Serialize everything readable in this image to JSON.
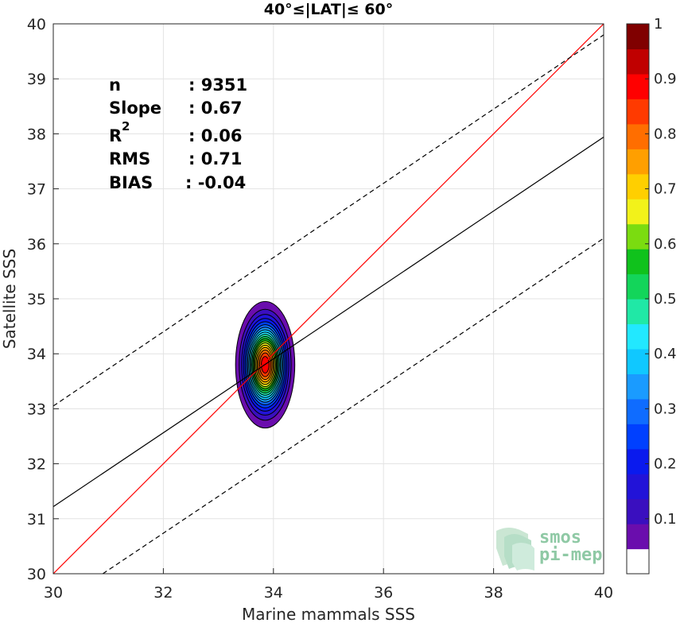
{
  "chart_data": {
    "type": "heatmap",
    "title": "40°≤|LAT|≤ 60°",
    "xlabel": "Marine mammals SSS",
    "ylabel": "Satellite SSS",
    "xlim": [
      30,
      40
    ],
    "ylim": [
      30,
      40
    ],
    "xticks": [
      "30",
      "32",
      "34",
      "36",
      "38",
      "40"
    ],
    "yticks": [
      "30",
      "31",
      "32",
      "33",
      "34",
      "35",
      "36",
      "37",
      "38",
      "39",
      "40"
    ],
    "grid": true,
    "density_center": [
      33.85,
      33.8
    ],
    "density_sigma": [
      0.22,
      0.47
    ],
    "contour_levels": [
      0.05,
      0.1,
      0.15,
      0.2,
      0.25,
      0.3,
      0.35,
      0.4,
      0.45,
      0.5,
      0.55,
      0.6,
      0.65,
      0.7,
      0.75,
      0.8,
      0.85,
      0.9,
      0.95,
      1.0
    ],
    "lines": [
      {
        "name": "one-to-one",
        "style": "solid",
        "color": "#ff0000",
        "points": [
          [
            30,
            30
          ],
          [
            40,
            40
          ]
        ]
      },
      {
        "name": "regression",
        "style": "solid",
        "color": "#000000",
        "points": [
          [
            30,
            31.22
          ],
          [
            40,
            37.94
          ]
        ]
      },
      {
        "name": "upper-bound",
        "style": "dashed",
        "color": "#000000",
        "points": [
          [
            30,
            33.05
          ],
          [
            40,
            39.8
          ]
        ]
      },
      {
        "name": "lower-bound",
        "style": "dashed",
        "color": "#000000",
        "points": [
          [
            30.9,
            30
          ],
          [
            40,
            36.1
          ]
        ]
      }
    ],
    "stats": [
      {
        "label": "n",
        "value": ": 9351"
      },
      {
        "label": "Slope",
        "value": ": 0.67"
      },
      {
        "label": "R",
        "sup": "2",
        "value": ": 0.06"
      },
      {
        "label": "RMS",
        "value": ": 0.71"
      },
      {
        "label": "BIAS",
        "value": ": -0.04"
      }
    ],
    "colorbar": {
      "ticks": [
        "0.1",
        "0.2",
        "0.3",
        "0.4",
        "0.5",
        "0.6",
        "0.7",
        "0.8",
        "0.9",
        "1"
      ],
      "range": [
        0,
        1
      ],
      "colors": [
        "#ffffff",
        "#6a0dad",
        "#3a0fbf",
        "#2213d8",
        "#0a1aee",
        "#0040ff",
        "#0f6cff",
        "#1a9bff",
        "#10c8ff",
        "#22e8ff",
        "#20e8a6",
        "#13d55a",
        "#10c21c",
        "#7bdc10",
        "#f2f21a",
        "#ffcf00",
        "#ff9f00",
        "#ff6e00",
        "#ff3a00",
        "#ff0000",
        "#c00000",
        "#800000"
      ]
    },
    "logo": {
      "line1": "smos",
      "line2": "pi-mep"
    }
  }
}
